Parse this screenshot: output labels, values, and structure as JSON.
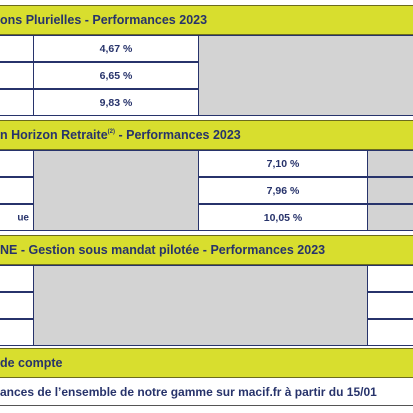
{
  "section1": {
    "title": "ons Plurielles - Performances 2023",
    "values": [
      "4,67 %",
      "6,65 %",
      "9,83 %"
    ]
  },
  "section2": {
    "title": "n Horizon Retraite",
    "superscript": "(2)",
    "title_suffix": " - Performances 2023",
    "values": [
      "7,10 %",
      "7,96 %",
      "10,05 %"
    ],
    "row3_label": "ue"
  },
  "section3": {
    "title": "NE - Gestion sous mandat pilotée - Performances 2023"
  },
  "section4": {
    "title": "de compte"
  },
  "footer": {
    "text": "ances de l’ensemble de notre gamme sur macif.fr à partir du 15/01"
  }
}
